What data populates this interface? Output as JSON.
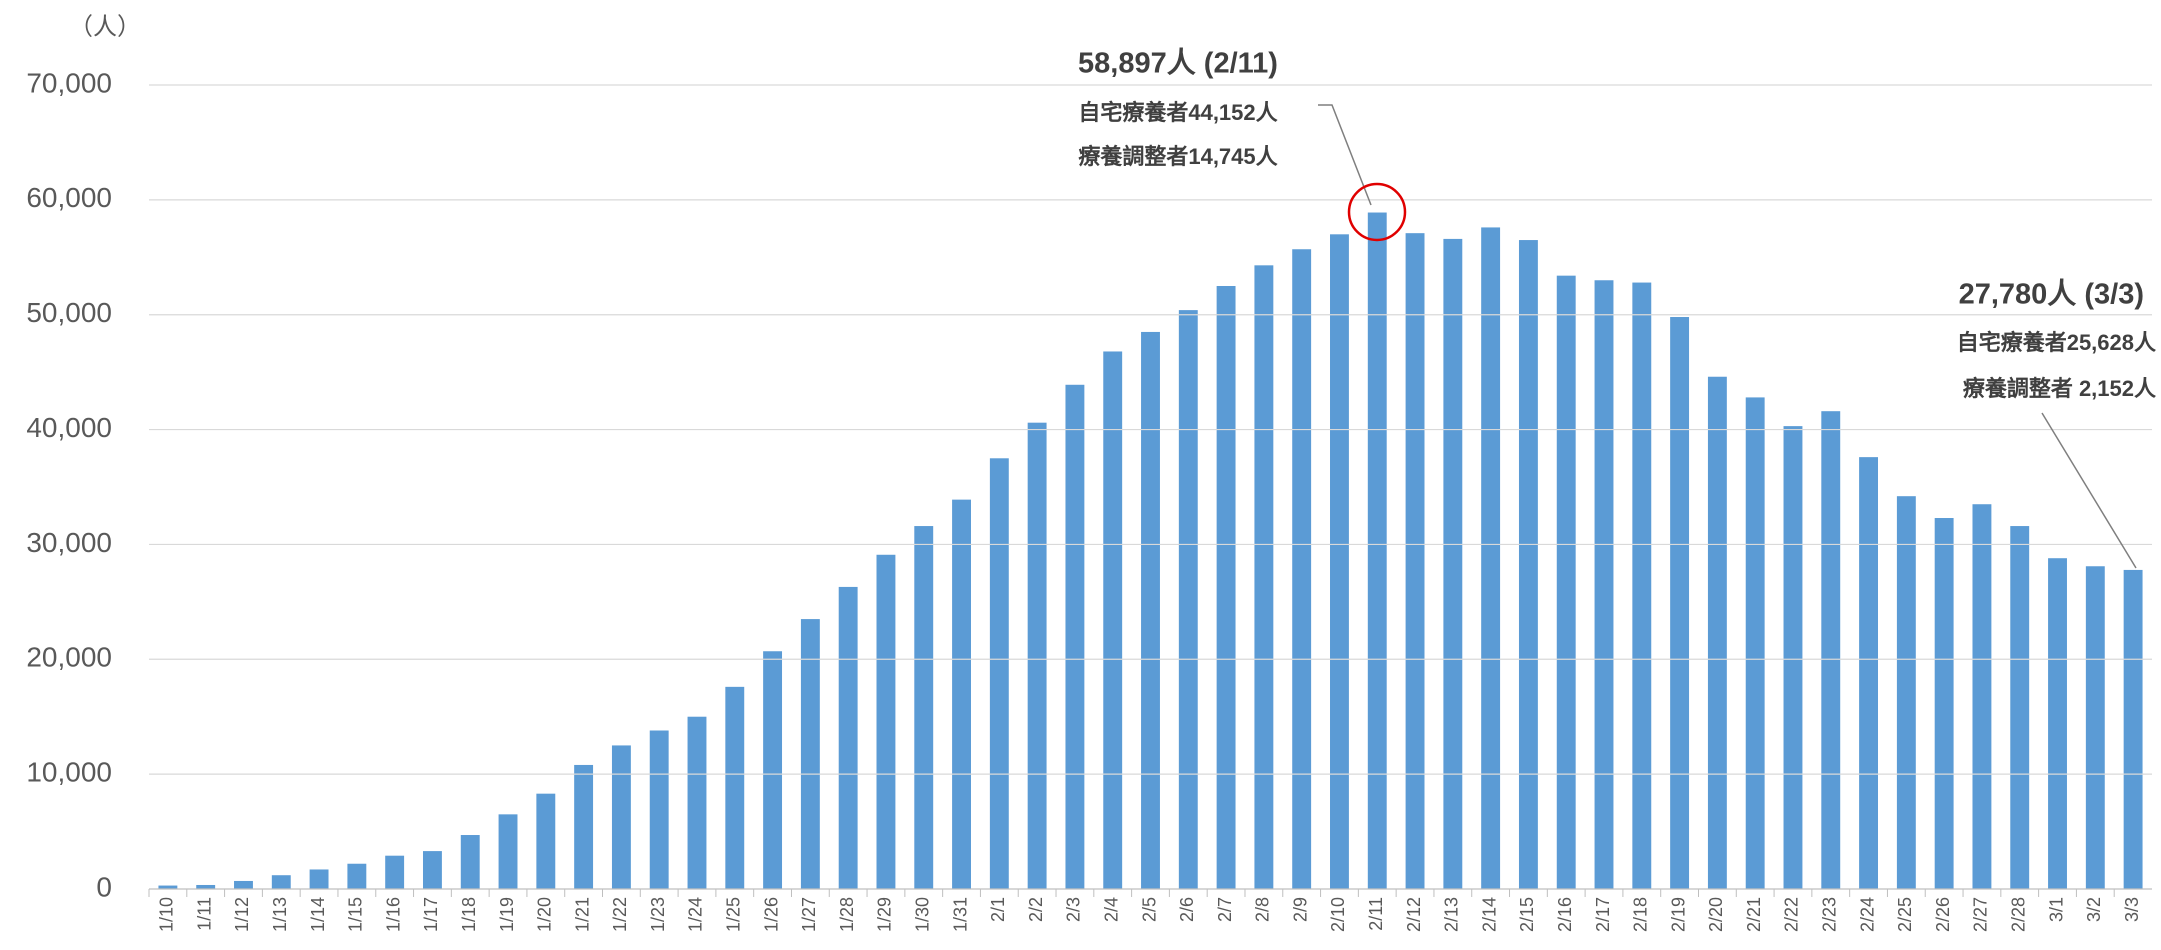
{
  "chart_data": {
    "type": "bar",
    "unit_label": "（人）",
    "color": "#5b9bd5",
    "grid": true,
    "categories": [
      "1/10",
      "1/11",
      "1/12",
      "1/13",
      "1/14",
      "1/15",
      "1/16",
      "1/17",
      "1/18",
      "1/19",
      "1/20",
      "1/21",
      "1/22",
      "1/23",
      "1/24",
      "1/25",
      "1/26",
      "1/27",
      "1/28",
      "1/29",
      "1/30",
      "1/31",
      "2/1",
      "2/2",
      "2/3",
      "2/4",
      "2/5",
      "2/6",
      "2/7",
      "2/8",
      "2/9",
      "2/10",
      "2/11",
      "2/12",
      "2/13",
      "2/14",
      "2/15",
      "2/16",
      "2/17",
      "2/18",
      "2/19",
      "2/20",
      "2/21",
      "2/22",
      "2/23",
      "2/24",
      "2/25",
      "2/26",
      "2/27",
      "2/28",
      "3/1",
      "3/2",
      "3/3"
    ],
    "values": [
      300,
      350,
      700,
      1200,
      1700,
      2200,
      2900,
      3300,
      4700,
      6500,
      8300,
      10800,
      12500,
      13800,
      15000,
      17600,
      20700,
      23500,
      26300,
      29100,
      31600,
      33900,
      37500,
      40600,
      43900,
      46800,
      48500,
      50400,
      52500,
      54300,
      55700,
      57000,
      58897,
      57100,
      56600,
      57600,
      56500,
      53400,
      53000,
      52800,
      49800,
      44600,
      42800,
      40300,
      41600,
      37600,
      34200,
      32300,
      33500,
      31600,
      28800,
      28100,
      27780
    ],
    "ylim": [
      0,
      70000
    ],
    "yticks": [
      0,
      {
        "value": 10000,
        "label": "10,000"
      },
      {
        "value": 20000,
        "label": "20,000"
      },
      {
        "value": 30000,
        "label": "30,000"
      },
      {
        "value": 40000,
        "label": "40,000"
      },
      {
        "value": 50000,
        "label": "50,000"
      },
      {
        "value": 60000,
        "label": "60,000"
      },
      {
        "value": 70000,
        "label": "70,000"
      }
    ],
    "annotations": [
      {
        "title": "58,897人 (2/11)",
        "lines": [
          "自宅療養者44,152人",
          "療養調整者14,745人"
        ]
      },
      {
        "title": "27,780人 (3/3)",
        "lines": [
          "自宅療養者25,628人",
          "療養調整者  2,152人"
        ]
      }
    ]
  }
}
